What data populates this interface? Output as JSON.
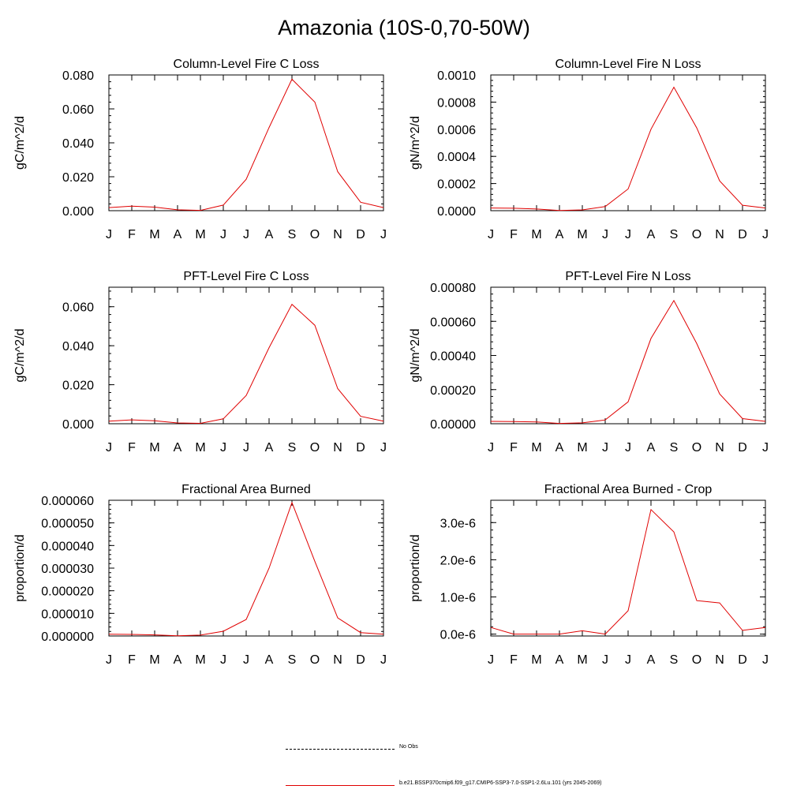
{
  "page": {
    "title": "Amazonia (10S-0,70-50W)"
  },
  "legend": {
    "items": [
      {
        "label": "No Obs",
        "style": "dashed",
        "color": "#000000"
      },
      {
        "label": "b.e21.BSSP370cmip6.f09_g17.CMIP6-SSP3-7.0-SSP1-2.6Lu.101 (yrs 2045-2069)",
        "style": "solid",
        "color": "#e00000"
      }
    ]
  },
  "chart_data": [
    {
      "type": "line",
      "title": "Column-Level Fire C Loss",
      "ylabel": "gC/m^2/d",
      "xlabel": "",
      "categories": [
        "J",
        "F",
        "M",
        "A",
        "M",
        "J",
        "J",
        "A",
        "S",
        "O",
        "N",
        "D",
        "J"
      ],
      "ylim": [
        0,
        0.08
      ],
      "yticks": [
        0.0,
        0.02,
        0.04,
        0.06,
        0.08
      ],
      "ytick_labels": [
        "0.000",
        "0.020",
        "0.040",
        "0.060",
        "0.080"
      ],
      "series": [
        {
          "values": [
            0.0018,
            0.0027,
            0.0021,
            0.0005,
            0.0002,
            0.0033,
            0.0185,
            0.049,
            0.0775,
            0.064,
            0.023,
            0.005,
            0.0018
          ]
        }
      ]
    },
    {
      "type": "line",
      "title": "Column-Level Fire N Loss",
      "ylabel": "gN/m^2/d",
      "xlabel": "",
      "categories": [
        "J",
        "F",
        "M",
        "A",
        "M",
        "J",
        "J",
        "A",
        "S",
        "O",
        "N",
        "D",
        "J"
      ],
      "ylim": [
        0,
        0.001
      ],
      "yticks": [
        0.0,
        0.0002,
        0.0004,
        0.0006,
        0.0008,
        0.001
      ],
      "ytick_labels": [
        "0.0000",
        "0.0002",
        "0.0004",
        "0.0006",
        "0.0008",
        "0.0010"
      ],
      "series": [
        {
          "values": [
            2e-05,
            1.8e-05,
            1.2e-05,
            2e-06,
            6e-06,
            3e-05,
            0.00016,
            0.0006,
            0.00091,
            0.00061,
            0.00022,
            4e-05,
            2e-05
          ]
        }
      ]
    },
    {
      "type": "line",
      "title": "PFT-Level Fire C Loss",
      "ylabel": "gC/m^2/d",
      "xlabel": "",
      "categories": [
        "J",
        "F",
        "M",
        "A",
        "M",
        "J",
        "J",
        "A",
        "S",
        "O",
        "N",
        "D",
        "J"
      ],
      "ylim": [
        0,
        0.07
      ],
      "yticks": [
        0.0,
        0.02,
        0.04,
        0.06
      ],
      "ytick_labels": [
        "0.000",
        "0.020",
        "0.040",
        "0.060"
      ],
      "series": [
        {
          "values": [
            0.0013,
            0.002,
            0.0015,
            0.0004,
            0.0002,
            0.0025,
            0.0145,
            0.039,
            0.0612,
            0.0505,
            0.018,
            0.0038,
            0.0013
          ]
        }
      ]
    },
    {
      "type": "line",
      "title": "PFT-Level Fire N Loss",
      "ylabel": "gN/m^2/d",
      "xlabel": "",
      "categories": [
        "J",
        "F",
        "M",
        "A",
        "M",
        "J",
        "J",
        "A",
        "S",
        "O",
        "N",
        "D",
        "J"
      ],
      "ylim": [
        0,
        0.0008
      ],
      "yticks": [
        0.0,
        0.0002,
        0.0004,
        0.0006,
        0.0008
      ],
      "ytick_labels": [
        "0.00000",
        "0.00020",
        "0.00040",
        "0.00060",
        "0.00080"
      ],
      "series": [
        {
          "values": [
            1.4e-05,
            1.3e-05,
            1e-05,
            2e-06,
            5e-06,
            2.2e-05,
            0.000128,
            0.0005,
            0.000722,
            0.00047,
            0.000175,
            3e-05,
            1.4e-05
          ]
        }
      ]
    },
    {
      "type": "line",
      "title": "Fractional Area Burned",
      "ylabel": "proportion/d",
      "xlabel": "",
      "categories": [
        "J",
        "F",
        "M",
        "A",
        "M",
        "J",
        "J",
        "A",
        "S",
        "O",
        "N",
        "D",
        "J"
      ],
      "ylim": [
        0,
        6e-05
      ],
      "yticks": [
        0.0,
        1e-05,
        2e-05,
        3e-05,
        4e-05,
        5e-05,
        6e-05
      ],
      "ytick_labels": [
        "0.000000",
        "0.000010",
        "0.000020",
        "0.000030",
        "0.000040",
        "0.000050",
        "0.000060"
      ],
      "series": [
        {
          "values": [
            8e-07,
            7e-07,
            5e-07,
            1e-07,
            4e-07,
            2.1e-06,
            7.3e-06,
            3e-05,
            5.9e-05,
            3.3e-05,
            8e-06,
            1.5e-06,
            8e-07
          ]
        }
      ]
    },
    {
      "type": "line",
      "title": "Fractional Area Burned - Crop",
      "ylabel": "proportion/d",
      "xlabel": "",
      "categories": [
        "J",
        "F",
        "M",
        "A",
        "M",
        "J",
        "J",
        "A",
        "S",
        "O",
        "N",
        "D",
        "J"
      ],
      "ylim": [
        -5e-08,
        3.6e-06
      ],
      "yticks": [
        0.0,
        1e-06,
        2e-06,
        3e-06
      ],
      "ytick_labels": [
        "0.0e-6",
        "1.0e-6",
        "2.0e-6",
        "3.0e-6"
      ],
      "series": [
        {
          "values": [
            1.8e-07,
            0.0,
            0.0,
            0.0,
            9e-08,
            0.0,
            6.3e-07,
            3.35e-06,
            2.75e-06,
            9e-07,
            8.4e-07,
            1e-07,
            1.8e-07
          ]
        }
      ]
    }
  ]
}
